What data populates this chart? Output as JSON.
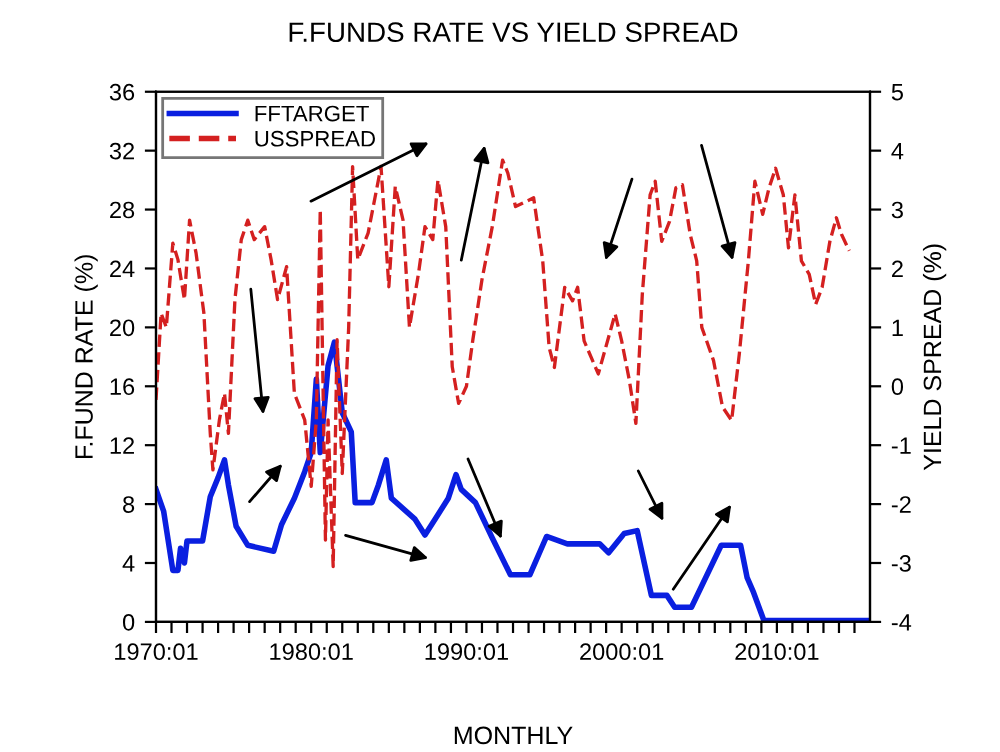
{
  "chart_data": {
    "type": "line",
    "title": "F.FUNDS RATE VS YIELD SPREAD",
    "xlabel": "MONTHLY",
    "ylabel": "F.FUND RATE (%)",
    "y2label": "YIELD SPREAD (%)",
    "xlim": [
      "1970-01",
      "2016-01"
    ],
    "ylim": [
      0,
      36
    ],
    "y2lim": [
      -4,
      5
    ],
    "xticks": [
      {
        "value": "1970-01",
        "label": "1970:01"
      },
      {
        "value": "1971-01",
        "label": null
      },
      {
        "value": "1972-01",
        "label": null
      },
      {
        "value": "1973-01",
        "label": null
      },
      {
        "value": "1974-01",
        "label": null
      },
      {
        "value": "1975-01",
        "label": null
      },
      {
        "value": "1976-01",
        "label": null
      },
      {
        "value": "1977-01",
        "label": null
      },
      {
        "value": "1978-01",
        "label": null
      },
      {
        "value": "1979-01",
        "label": null
      },
      {
        "value": "1980-01",
        "label": "1980:01"
      },
      {
        "value": "1981-01",
        "label": null
      },
      {
        "value": "1982-01",
        "label": null
      },
      {
        "value": "1983-01",
        "label": null
      },
      {
        "value": "1984-01",
        "label": null
      },
      {
        "value": "1985-01",
        "label": null
      },
      {
        "value": "1986-01",
        "label": null
      },
      {
        "value": "1987-01",
        "label": null
      },
      {
        "value": "1988-01",
        "label": null
      },
      {
        "value": "1989-01",
        "label": null
      },
      {
        "value": "1990-01",
        "label": "1990:01"
      },
      {
        "value": "1991-01",
        "label": null
      },
      {
        "value": "1992-01",
        "label": null
      },
      {
        "value": "1993-01",
        "label": null
      },
      {
        "value": "1994-01",
        "label": null
      },
      {
        "value": "1995-01",
        "label": null
      },
      {
        "value": "1996-01",
        "label": null
      },
      {
        "value": "1997-01",
        "label": null
      },
      {
        "value": "1998-01",
        "label": null
      },
      {
        "value": "1999-01",
        "label": null
      },
      {
        "value": "2000-01",
        "label": "2000:01"
      },
      {
        "value": "2001-01",
        "label": null
      },
      {
        "value": "2002-01",
        "label": null
      },
      {
        "value": "2003-01",
        "label": null
      },
      {
        "value": "2004-01",
        "label": null
      },
      {
        "value": "2005-01",
        "label": null
      },
      {
        "value": "2006-01",
        "label": null
      },
      {
        "value": "2007-01",
        "label": null
      },
      {
        "value": "2008-01",
        "label": null
      },
      {
        "value": "2009-01",
        "label": null
      },
      {
        "value": "2010-01",
        "label": "2010:01"
      },
      {
        "value": "2011-01",
        "label": null
      },
      {
        "value": "2012-01",
        "label": null
      },
      {
        "value": "2013-01",
        "label": null
      },
      {
        "value": "2014-01",
        "label": null
      },
      {
        "value": "2015-01",
        "label": null
      }
    ],
    "yticks": [
      0,
      4,
      8,
      12,
      16,
      20,
      24,
      28,
      32,
      36
    ],
    "y2ticks": [
      -4,
      -3,
      -2,
      -1,
      0,
      1,
      2,
      3,
      4,
      5
    ],
    "legend": "top left",
    "grid": false,
    "series": [
      {
        "name": "FFTARGET",
        "color": "#0a1fe0",
        "line_style": "solid",
        "x": [
          "1970-01",
          "1970-07",
          "1971-02",
          "1971-06",
          "1971-08",
          "1971-11",
          "1972-01",
          "1973-01",
          "1973-07",
          "1974-01",
          "1974-06",
          "1974-09",
          "1975-03",
          "1975-12",
          "1977-08",
          "1978-02",
          "1978-12",
          "1979-08",
          "1980-01",
          "1980-05",
          "1980-08",
          "1981-02",
          "1981-07",
          "1982-01",
          "1982-08",
          "1982-11",
          "1983-12",
          "1984-05",
          "1984-11",
          "1985-03",
          "1986-09",
          "1987-05",
          "1988-01",
          "1988-11",
          "1989-05",
          "1989-09",
          "1990-08",
          "1991-09",
          "1992-11",
          "1994-02",
          "1995-03",
          "1996-07",
          "1998-08",
          "1999-03",
          "2000-03",
          "2001-01",
          "2001-12",
          "2002-12",
          "2003-06",
          "2004-07",
          "2006-06",
          "2007-09",
          "2008-02",
          "2008-07",
          "2009-03",
          "2016-01"
        ],
        "values": [
          9,
          7.5,
          3.5,
          3.5,
          5,
          4,
          5.5,
          5.5,
          8.5,
          9.8,
          11,
          9.3,
          6.5,
          5.2,
          4.8,
          6.6,
          8.4,
          10.2,
          11.5,
          16.5,
          11.5,
          17.4,
          19,
          14.2,
          12.9,
          8.1,
          8.1,
          9.3,
          11,
          8.4,
          7,
          5.9,
          7,
          8.4,
          10,
          9,
          8.1,
          5.7,
          3.2,
          3.2,
          5.8,
          5.3,
          5.3,
          4.7,
          6.0,
          6.2,
          1.8,
          1.8,
          1.0,
          1.0,
          5.2,
          5.2,
          3.0,
          2.0,
          0.1,
          0.1
        ]
      },
      {
        "name": "USSPREAD",
        "color": "#d42020",
        "line_style": "dashed",
        "axis": "y2",
        "x": [
          "1970-01",
          "1970-05",
          "1970-09",
          "1971-02",
          "1971-06",
          "1971-11",
          "1972-01",
          "1972-03",
          "1972-08",
          "1973-02",
          "1973-07",
          "1973-09",
          "1974-02",
          "1974-06",
          "1974-09",
          "1975-02",
          "1975-07",
          "1975-12",
          "1976-05",
          "1977-01",
          "1977-06",
          "1977-11",
          "1978-06",
          "1978-12",
          "1979-08",
          "1980-01",
          "1980-05",
          "1980-08",
          "1980-12",
          "1981-02",
          "1981-06",
          "1981-09",
          "1982-01",
          "1982-06",
          "1982-09",
          "1983-01",
          "1983-09",
          "1984-07",
          "1985-01",
          "1985-06",
          "1985-12",
          "1986-05",
          "1986-12",
          "1987-05",
          "1987-11",
          "1988-03",
          "1988-09",
          "1989-02",
          "1989-07",
          "1990-01",
          "1990-06",
          "1991-01",
          "1991-09",
          "1992-05",
          "1992-09",
          "1993-03",
          "1994-05",
          "1994-12",
          "1995-05",
          "1995-09",
          "1996-05",
          "1996-11",
          "1997-03",
          "1997-08",
          "1998-07",
          "1999-08",
          "2000-01",
          "2000-07",
          "2000-12",
          "2001-05",
          "2001-11",
          "2002-03",
          "2002-08",
          "2003-02",
          "2003-07",
          "2003-12",
          "2004-06",
          "2004-11",
          "2005-03",
          "2005-12",
          "2006-07",
          "2007-02",
          "2007-08",
          "2008-03",
          "2008-08",
          "2009-02",
          "2009-07",
          "2009-12",
          "2010-06",
          "2010-10",
          "2011-03",
          "2011-08",
          "2012-02",
          "2012-07",
          "2012-12",
          "2013-06",
          "2013-11",
          "2014-03",
          "2014-09"
        ],
        "values": [
          -0.23,
          1.24,
          1.0,
          2.43,
          2.15,
          1.47,
          2.15,
          2.82,
          2.26,
          1.24,
          -0.8,
          -1.42,
          -0.57,
          -0.12,
          -0.8,
          1.47,
          2.49,
          2.82,
          2.49,
          2.71,
          2.15,
          1.47,
          2.03,
          -0.12,
          -0.57,
          -1.7,
          -0.57,
          3.0,
          -2.61,
          -0.57,
          -3.06,
          0.79,
          -1.48,
          1.0,
          3.73,
          2.15,
          2.6,
          3.73,
          1.69,
          3.39,
          2.82,
          1.0,
          1.92,
          2.71,
          2.49,
          3.5,
          2.71,
          0.33,
          -0.29,
          0.0,
          0.79,
          1.81,
          2.71,
          3.84,
          3.62,
          3.05,
          3.2,
          2.13,
          0.66,
          0.32,
          1.68,
          1.45,
          1.68,
          0.77,
          0.21,
          1.23,
          0.77,
          0.1,
          -0.63,
          1.56,
          3.25,
          3.48,
          2.46,
          2.8,
          3.37,
          3.42,
          2.58,
          2.13,
          1.0,
          0.44,
          -0.35,
          -0.58,
          0.55,
          2.13,
          3.48,
          2.92,
          3.37,
          3.7,
          3.25,
          2.35,
          3.25,
          2.13,
          1.9,
          1.39,
          1.68,
          2.46,
          2.86,
          2.58,
          2.3
        ]
      }
    ]
  }
}
